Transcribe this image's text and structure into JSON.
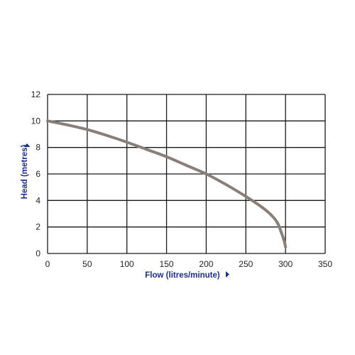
{
  "chart_data": {
    "type": "line",
    "title": "",
    "xlabel": "Flow (litres/minute)",
    "ylabel": "Head (metres)",
    "xlim": [
      0,
      350
    ],
    "ylim": [
      0,
      12
    ],
    "x_ticks": [
      0,
      50,
      100,
      150,
      200,
      250,
      300,
      350
    ],
    "y_ticks": [
      0,
      2,
      4,
      6,
      8,
      10,
      12
    ],
    "grid": true,
    "legend": "none",
    "series": [
      {
        "x": [
          0,
          25,
          50,
          75,
          100,
          125,
          150,
          175,
          200,
          225,
          250,
          270,
          282,
          290,
          294,
          297,
          299,
          300
        ],
        "y": [
          10.0,
          9.7,
          9.35,
          8.9,
          8.4,
          7.85,
          7.3,
          6.65,
          6.0,
          5.2,
          4.3,
          3.5,
          2.9,
          2.3,
          1.7,
          1.2,
          0.8,
          0.5
        ]
      }
    ],
    "colors": {
      "curve": "#8a7f78",
      "grid": "#1a1a1a",
      "axis_title": "#1b2f8f",
      "arrow_marker": "#1b2f8f",
      "tick_label": "#222222"
    }
  }
}
